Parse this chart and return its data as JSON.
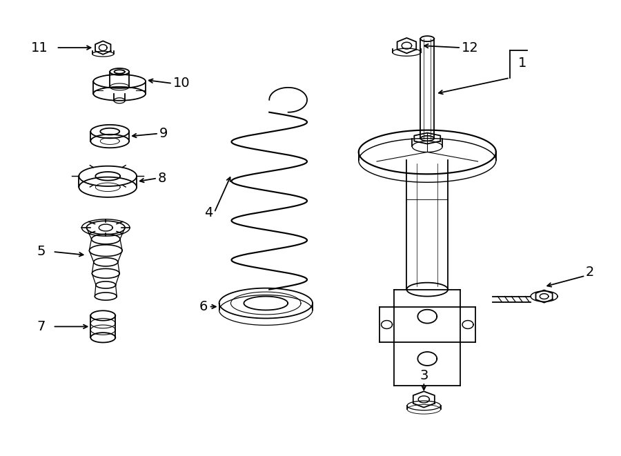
{
  "bg_color": "#ffffff",
  "line_color": "#000000",
  "lw": 1.3,
  "fig_w": 9.0,
  "fig_h": 6.61,
  "dpi": 100
}
